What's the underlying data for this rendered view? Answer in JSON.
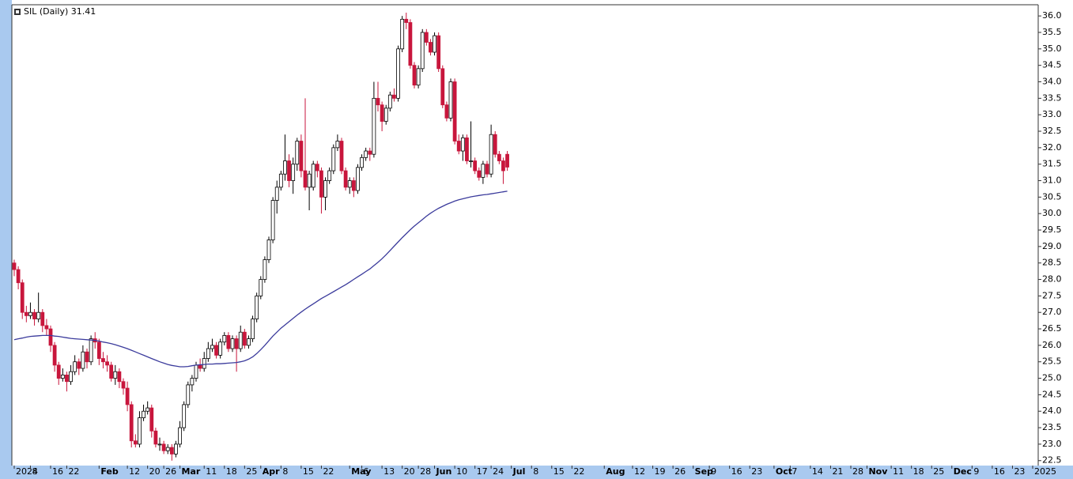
{
  "chart_data": {
    "type": "candlestick",
    "title": "SIL (Daily) 31.41",
    "xlim": [
      0,
      252
    ],
    "ylim": [
      22.35,
      36.34
    ],
    "up_color": "#ffffff",
    "down_color": "#c8163c",
    "ma_color": "#3b3b9c",
    "yticks": [
      {
        "value": 22.5,
        "label": "22.5"
      },
      {
        "value": 23,
        "label": "23.0"
      },
      {
        "value": 23.5,
        "label": "23.5"
      },
      {
        "value": 24,
        "label": "24.0"
      },
      {
        "value": 24.5,
        "label": "24.5"
      },
      {
        "value": 25,
        "label": "25.0"
      },
      {
        "value": 25.5,
        "label": "25.5"
      },
      {
        "value": 26,
        "label": "26.0"
      },
      {
        "value": 26.5,
        "label": "26.5"
      },
      {
        "value": 27,
        "label": "27.0"
      },
      {
        "value": 27.5,
        "label": "27.5"
      },
      {
        "value": 28,
        "label": "28.0"
      },
      {
        "value": 28.5,
        "label": "28.5"
      },
      {
        "value": 29,
        "label": "29.0"
      },
      {
        "value": 29.5,
        "label": "29.5"
      },
      {
        "value": 30,
        "label": "30.0"
      },
      {
        "value": 30.5,
        "label": "30.5"
      },
      {
        "value": 31,
        "label": "31.0"
      },
      {
        "value": 31.5,
        "label": "31.5"
      },
      {
        "value": 32,
        "label": "32.0"
      },
      {
        "value": 32.5,
        "label": "32.5"
      },
      {
        "value": 33,
        "label": "33.0"
      },
      {
        "value": 33.5,
        "label": "33.5"
      },
      {
        "value": 34,
        "label": "34.0"
      },
      {
        "value": 34.5,
        "label": "34.5"
      },
      {
        "value": 35,
        "label": "35.0"
      },
      {
        "value": 35.5,
        "label": "35.5"
      },
      {
        "value": 36,
        "label": "36.0"
      }
    ],
    "xticks": [
      {
        "value": 0,
        "label": "2024"
      },
      {
        "value": 4,
        "label": "8"
      },
      {
        "value": 9,
        "label": "16"
      },
      {
        "value": 13,
        "label": "22"
      },
      {
        "value": 21,
        "label": "Feb"
      },
      {
        "value": 28,
        "label": "12"
      },
      {
        "value": 33,
        "label": "20"
      },
      {
        "value": 37,
        "label": "26"
      },
      {
        "value": 41,
        "label": "Mar"
      },
      {
        "value": 47,
        "label": "11"
      },
      {
        "value": 52,
        "label": "18"
      },
      {
        "value": 57,
        "label": "25"
      },
      {
        "value": 61,
        "label": "Apr"
      },
      {
        "value": 66,
        "label": "8"
      },
      {
        "value": 71,
        "label": "15"
      },
      {
        "value": 76,
        "label": "22"
      },
      {
        "value": 83,
        "label": "May"
      },
      {
        "value": 86,
        "label": "6"
      },
      {
        "value": 91,
        "label": "13"
      },
      {
        "value": 96,
        "label": "20"
      },
      {
        "value": 100,
        "label": "28"
      },
      {
        "value": 104,
        "label": "Jun"
      },
      {
        "value": 109,
        "label": "10"
      },
      {
        "value": 114,
        "label": "17"
      },
      {
        "value": 118,
        "label": "24"
      },
      {
        "value": 123,
        "label": "Jul"
      },
      {
        "value": 128,
        "label": "8"
      },
      {
        "value": 133,
        "label": "15"
      },
      {
        "value": 138,
        "label": "22"
      },
      {
        "value": 146,
        "label": "Aug"
      },
      {
        "value": 153,
        "label": "12"
      },
      {
        "value": 158,
        "label": "19"
      },
      {
        "value": 163,
        "label": "26"
      },
      {
        "value": 168,
        "label": "Sep"
      },
      {
        "value": 172,
        "label": "9"
      },
      {
        "value": 177,
        "label": "16"
      },
      {
        "value": 182,
        "label": "23"
      },
      {
        "value": 188,
        "label": "Oct"
      },
      {
        "value": 192,
        "label": "7"
      },
      {
        "value": 197,
        "label": "14"
      },
      {
        "value": 202,
        "label": "21"
      },
      {
        "value": 207,
        "label": "28"
      },
      {
        "value": 211,
        "label": "Nov"
      },
      {
        "value": 217,
        "label": "11"
      },
      {
        "value": 222,
        "label": "18"
      },
      {
        "value": 227,
        "label": "25"
      },
      {
        "value": 232,
        "label": "Dec"
      },
      {
        "value": 237,
        "label": "9"
      },
      {
        "value": 242,
        "label": "16"
      },
      {
        "value": 247,
        "label": "23"
      },
      {
        "value": 252,
        "label": "2025"
      }
    ],
    "candles": [
      [
        28.5,
        28.6,
        28.1,
        28.3
      ],
      [
        28.3,
        28.4,
        27.7,
        27.9
      ],
      [
        27.9,
        28.0,
        26.8,
        27.0
      ],
      [
        27.0,
        27.2,
        26.7,
        26.9
      ],
      [
        26.9,
        27.3,
        26.8,
        27.0
      ],
      [
        27.0,
        27.1,
        26.6,
        26.8
      ],
      [
        26.8,
        27.6,
        26.7,
        27.0
      ],
      [
        27.0,
        27.1,
        26.4,
        26.6
      ],
      [
        26.6,
        26.8,
        26.3,
        26.5
      ],
      [
        26.5,
        26.6,
        25.8,
        26.0
      ],
      [
        26.0,
        26.1,
        25.2,
        25.4
      ],
      [
        25.4,
        25.5,
        24.8,
        25.0
      ],
      [
        25.0,
        25.3,
        24.9,
        25.1
      ],
      [
        25.1,
        25.2,
        24.6,
        24.9
      ],
      [
        24.9,
        25.4,
        24.8,
        25.2
      ],
      [
        25.2,
        25.7,
        25.1,
        25.5
      ],
      [
        25.5,
        25.6,
        25.1,
        25.3
      ],
      [
        25.3,
        26.0,
        25.2,
        25.8
      ],
      [
        25.8,
        25.9,
        25.3,
        25.5
      ],
      [
        25.5,
        26.3,
        25.4,
        26.2
      ],
      [
        26.2,
        26.4,
        25.9,
        26.1
      ],
      [
        26.1,
        26.2,
        25.4,
        25.6
      ],
      [
        25.6,
        25.8,
        25.3,
        25.5
      ],
      [
        25.5,
        25.7,
        25.2,
        25.4
      ],
      [
        25.4,
        25.5,
        24.9,
        25.0
      ],
      [
        25.0,
        25.4,
        24.8,
        25.2
      ],
      [
        25.2,
        25.3,
        24.7,
        24.9
      ],
      [
        24.9,
        25.0,
        24.5,
        24.7
      ],
      [
        24.7,
        24.9,
        24.0,
        24.2
      ],
      [
        24.2,
        24.3,
        22.9,
        23.1
      ],
      [
        23.1,
        23.3,
        22.9,
        23.0
      ],
      [
        23.0,
        24.0,
        22.9,
        23.8
      ],
      [
        23.8,
        24.2,
        23.7,
        24.0
      ],
      [
        24.0,
        24.3,
        23.9,
        24.1
      ],
      [
        24.1,
        24.2,
        23.2,
        23.4
      ],
      [
        23.4,
        23.5,
        22.9,
        23.0
      ],
      [
        23.0,
        23.2,
        22.8,
        23.0
      ],
      [
        23.0,
        23.1,
        22.7,
        22.8
      ],
      [
        22.8,
        23.0,
        22.7,
        22.9
      ],
      [
        22.9,
        23.0,
        22.5,
        22.7
      ],
      [
        22.7,
        23.1,
        22.6,
        23.0
      ],
      [
        23.0,
        23.7,
        22.9,
        23.5
      ],
      [
        23.5,
        24.3,
        23.4,
        24.2
      ],
      [
        24.2,
        24.9,
        24.1,
        24.8
      ],
      [
        24.8,
        25.1,
        24.6,
        25.0
      ],
      [
        25.0,
        25.5,
        24.9,
        25.4
      ],
      [
        25.4,
        25.6,
        25.2,
        25.3
      ],
      [
        25.3,
        25.8,
        25.2,
        25.6
      ],
      [
        25.6,
        26.1,
        25.5,
        25.9
      ],
      [
        25.9,
        26.2,
        25.8,
        26.0
      ],
      [
        26.0,
        26.1,
        25.6,
        25.7
      ],
      [
        25.7,
        26.2,
        25.6,
        26.1
      ],
      [
        26.1,
        26.4,
        26.0,
        26.3
      ],
      [
        26.3,
        26.4,
        25.8,
        25.9
      ],
      [
        25.9,
        26.3,
        25.8,
        26.2
      ],
      [
        26.2,
        26.3,
        25.2,
        25.9
      ],
      [
        25.9,
        26.6,
        25.8,
        26.4
      ],
      [
        26.4,
        26.5,
        25.9,
        26.0
      ],
      [
        26.0,
        26.3,
        25.9,
        26.2
      ],
      [
        26.2,
        26.9,
        26.1,
        26.8
      ],
      [
        26.8,
        27.6,
        26.7,
        27.5
      ],
      [
        27.5,
        28.1,
        27.4,
        28.0
      ],
      [
        28.0,
        28.7,
        27.9,
        28.6
      ],
      [
        28.6,
        29.3,
        28.5,
        29.2
      ],
      [
        29.2,
        30.5,
        29.1,
        30.4
      ],
      [
        30.4,
        31.0,
        30.0,
        30.8
      ],
      [
        30.8,
        31.3,
        30.7,
        31.2
      ],
      [
        31.2,
        32.4,
        31.0,
        31.6
      ],
      [
        31.6,
        31.8,
        30.8,
        31.0
      ],
      [
        31.0,
        31.7,
        30.6,
        31.5
      ],
      [
        31.5,
        32.3,
        31.3,
        32.2
      ],
      [
        32.2,
        32.4,
        31.1,
        31.3
      ],
      [
        31.3,
        33.5,
        30.7,
        30.8
      ],
      [
        30.8,
        31.3,
        30.1,
        31.2
      ],
      [
        30.8,
        31.6,
        30.7,
        31.5
      ],
      [
        31.5,
        31.6,
        31.1,
        31.3
      ],
      [
        31.3,
        31.4,
        30.0,
        30.5
      ],
      [
        30.5,
        31.1,
        30.1,
        31.0
      ],
      [
        31.0,
        31.4,
        30.9,
        31.3
      ],
      [
        31.3,
        32.1,
        31.2,
        32.0
      ],
      [
        32.0,
        32.4,
        31.9,
        32.2
      ],
      [
        32.2,
        32.3,
        31.2,
        31.3
      ],
      [
        31.3,
        31.4,
        30.7,
        30.8
      ],
      [
        30.8,
        31.1,
        30.6,
        31.0
      ],
      [
        31.0,
        31.1,
        30.5,
        30.7
      ],
      [
        30.7,
        31.5,
        30.6,
        31.4
      ],
      [
        31.4,
        31.8,
        31.3,
        31.7
      ],
      [
        31.7,
        32.0,
        31.6,
        31.9
      ],
      [
        31.9,
        32.0,
        31.6,
        31.8
      ],
      [
        31.8,
        34.0,
        31.7,
        33.5
      ],
      [
        33.5,
        34.0,
        33.1,
        33.3
      ],
      [
        33.3,
        33.4,
        32.5,
        32.8
      ],
      [
        32.8,
        33.3,
        32.7,
        33.2
      ],
      [
        33.2,
        33.7,
        33.1,
        33.6
      ],
      [
        33.6,
        33.8,
        33.4,
        33.5
      ],
      [
        33.5,
        35.1,
        33.4,
        35.0
      ],
      [
        35.0,
        36.0,
        34.9,
        35.9
      ],
      [
        35.9,
        36.1,
        35.6,
        35.8
      ],
      [
        35.8,
        35.9,
        34.4,
        34.5
      ],
      [
        34.5,
        34.6,
        33.8,
        33.9
      ],
      [
        33.9,
        34.5,
        33.8,
        34.4
      ],
      [
        34.4,
        35.6,
        34.3,
        35.5
      ],
      [
        35.5,
        35.6,
        35.1,
        35.2
      ],
      [
        35.2,
        35.3,
        34.8,
        34.9
      ],
      [
        34.9,
        35.5,
        34.8,
        35.4
      ],
      [
        35.4,
        35.5,
        34.3,
        34.4
      ],
      [
        34.4,
        34.5,
        33.2,
        33.3
      ],
      [
        33.3,
        33.4,
        32.8,
        32.9
      ],
      [
        32.9,
        34.1,
        32.8,
        34.0
      ],
      [
        34.0,
        34.1,
        32.1,
        32.2
      ],
      [
        32.2,
        32.4,
        31.8,
        31.9
      ],
      [
        31.9,
        32.4,
        31.6,
        32.3
      ],
      [
        32.3,
        32.4,
        31.5,
        31.6
      ],
      [
        31.6,
        32.8,
        31.4,
        31.6
      ],
      [
        31.6,
        31.7,
        31.2,
        31.3
      ],
      [
        31.3,
        31.4,
        31.0,
        31.1
      ],
      [
        31.1,
        31.6,
        30.9,
        31.5
      ],
      [
        31.5,
        31.6,
        31.1,
        31.2
      ],
      [
        31.2,
        32.7,
        31.1,
        32.4
      ],
      [
        32.4,
        32.5,
        31.7,
        31.8
      ],
      [
        31.8,
        31.9,
        31.5,
        31.6
      ],
      [
        31.6,
        31.7,
        30.9,
        31.3
      ],
      [
        31.8,
        31.9,
        31.3,
        31.41
      ]
    ],
    "ma_values": [
      26.17,
      26.2,
      26.22,
      26.25,
      26.27,
      26.28,
      26.29,
      26.3,
      26.3,
      26.3,
      26.28,
      26.27,
      26.25,
      26.23,
      26.21,
      26.2,
      26.19,
      26.18,
      26.17,
      26.16,
      26.15,
      26.13,
      26.1,
      26.08,
      26.05,
      26.02,
      25.98,
      25.94,
      25.9,
      25.85,
      25.8,
      25.75,
      25.7,
      25.65,
      25.6,
      25.55,
      25.5,
      25.46,
      25.42,
      25.39,
      25.37,
      25.35,
      25.35,
      25.36,
      25.38,
      25.4,
      25.41,
      25.42,
      25.43,
      25.43,
      25.44,
      25.44,
      25.45,
      25.46,
      25.47,
      25.48,
      25.5,
      25.53,
      25.58,
      25.65,
      25.75,
      25.87,
      26.0,
      26.14,
      26.28,
      26.4,
      26.52,
      26.62,
      26.72,
      26.82,
      26.92,
      27.01,
      27.1,
      27.18,
      27.26,
      27.34,
      27.42,
      27.49,
      27.56,
      27.63,
      27.7,
      27.77,
      27.84,
      27.92,
      28.0,
      28.08,
      28.16,
      28.24,
      28.32,
      28.42,
      28.52,
      28.63,
      28.75,
      28.88,
      29.01,
      29.14,
      29.27,
      29.39,
      29.51,
      29.62,
      29.72,
      29.82,
      29.92,
      30.01,
      30.09,
      30.16,
      30.22,
      30.28,
      30.33,
      30.38,
      30.42,
      30.45,
      30.48,
      30.51,
      30.53,
      30.55,
      30.57,
      30.58,
      30.6,
      30.62,
      30.64,
      30.66,
      30.68
    ]
  }
}
